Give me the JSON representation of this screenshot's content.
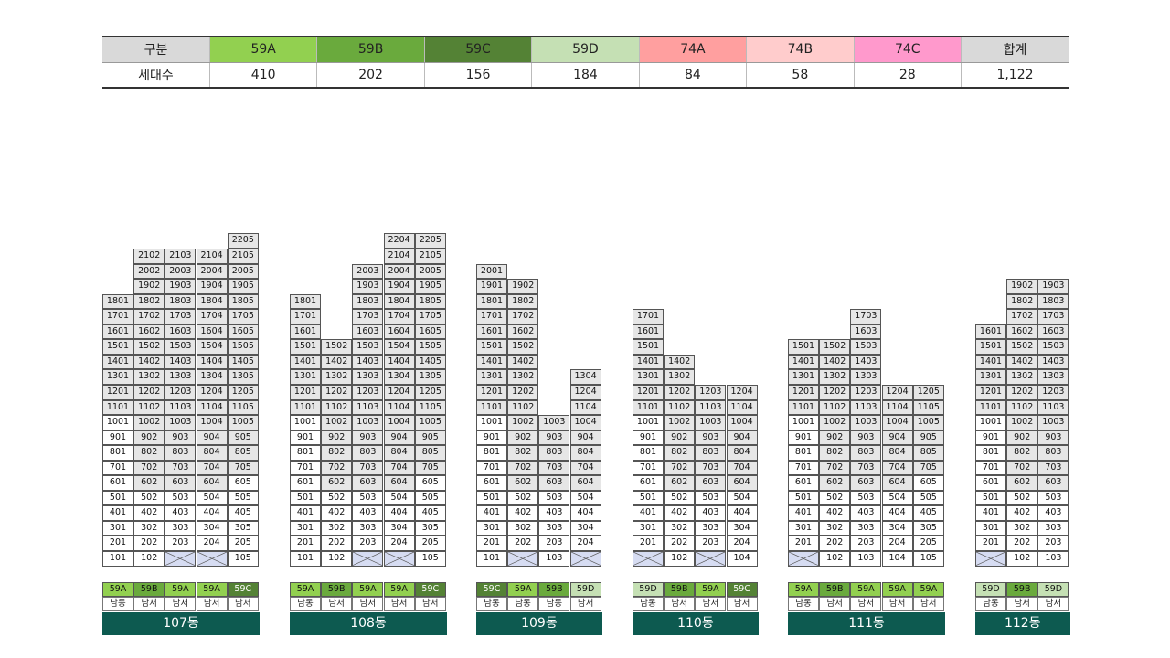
{
  "summary": {
    "header_label": "구분",
    "count_label": "세대수",
    "types": [
      {
        "name": "59A",
        "count": "410",
        "color": "#92d050"
      },
      {
        "name": "59B",
        "count": "202",
        "color": "#6aaa3d"
      },
      {
        "name": "59C",
        "count": "156",
        "color": "#548235"
      },
      {
        "name": "59D",
        "count": "184",
        "color": "#c5e0b4"
      },
      {
        "name": "74A",
        "count": "84",
        "color": "#ff9f9f"
      },
      {
        "name": "74B",
        "count": "58",
        "color": "#ffcccc"
      },
      {
        "name": "74C",
        "count": "28",
        "color": "#ff99cc"
      }
    ],
    "total_label": "합계",
    "total_count": "1,122"
  },
  "buildings": [
    {
      "name": "107동",
      "types": [
        "59A",
        "59B",
        "59A",
        "59A",
        "59C"
      ],
      "directions": [
        "남동",
        "남서",
        "남서",
        "남서",
        "남서"
      ],
      "max_floors": [
        18,
        21,
        21,
        21,
        22
      ],
      "gray_from": [
        11,
        6,
        6,
        6,
        7
      ],
      "missing_first": [
        false,
        false,
        true,
        true,
        false
      ]
    },
    {
      "name": "108동",
      "types": [
        "59A",
        "59B",
        "59A",
        "59A",
        "59C"
      ],
      "directions": [
        "남동",
        "남서",
        "남서",
        "남서",
        "남서"
      ],
      "max_floors": [
        18,
        15,
        20,
        22,
        22
      ],
      "gray_from": [
        11,
        6,
        6,
        6,
        7
      ],
      "missing_first": [
        false,
        false,
        true,
        true,
        false
      ]
    },
    {
      "name": "109동",
      "types": [
        "59C",
        "59A",
        "59B",
        "59D"
      ],
      "directions": [
        "남동",
        "남동",
        "남동",
        "남서"
      ],
      "max_floors": [
        20,
        19,
        10,
        13
      ],
      "gray_from": [
        11,
        6,
        6,
        6
      ],
      "missing_first": [
        false,
        true,
        false,
        true
      ]
    },
    {
      "name": "110동",
      "types": [
        "59D",
        "59B",
        "59A",
        "59C"
      ],
      "directions": [
        "남동",
        "남서",
        "남서",
        "남서"
      ],
      "max_floors": [
        17,
        14,
        12,
        12
      ],
      "gray_from": [
        11,
        6,
        6,
        6
      ],
      "missing_first": [
        true,
        false,
        true,
        false
      ]
    },
    {
      "name": "111동",
      "types": [
        "59A",
        "59B",
        "59A",
        "59A",
        "59A"
      ],
      "directions": [
        "남동",
        "남서",
        "남서",
        "남서",
        "남서"
      ],
      "max_floors": [
        15,
        15,
        17,
        12,
        12
      ],
      "gray_from": [
        11,
        6,
        6,
        6,
        7
      ],
      "missing_first": [
        true,
        false,
        false,
        false,
        false
      ]
    },
    {
      "name": "112동",
      "types": [
        "59D",
        "59B",
        "59D"
      ],
      "directions": [
        "남동",
        "남서",
        "남서"
      ],
      "max_floors": [
        16,
        19,
        19
      ],
      "gray_from": [
        11,
        6,
        6
      ],
      "missing_first": [
        true,
        false,
        false
      ]
    }
  ]
}
